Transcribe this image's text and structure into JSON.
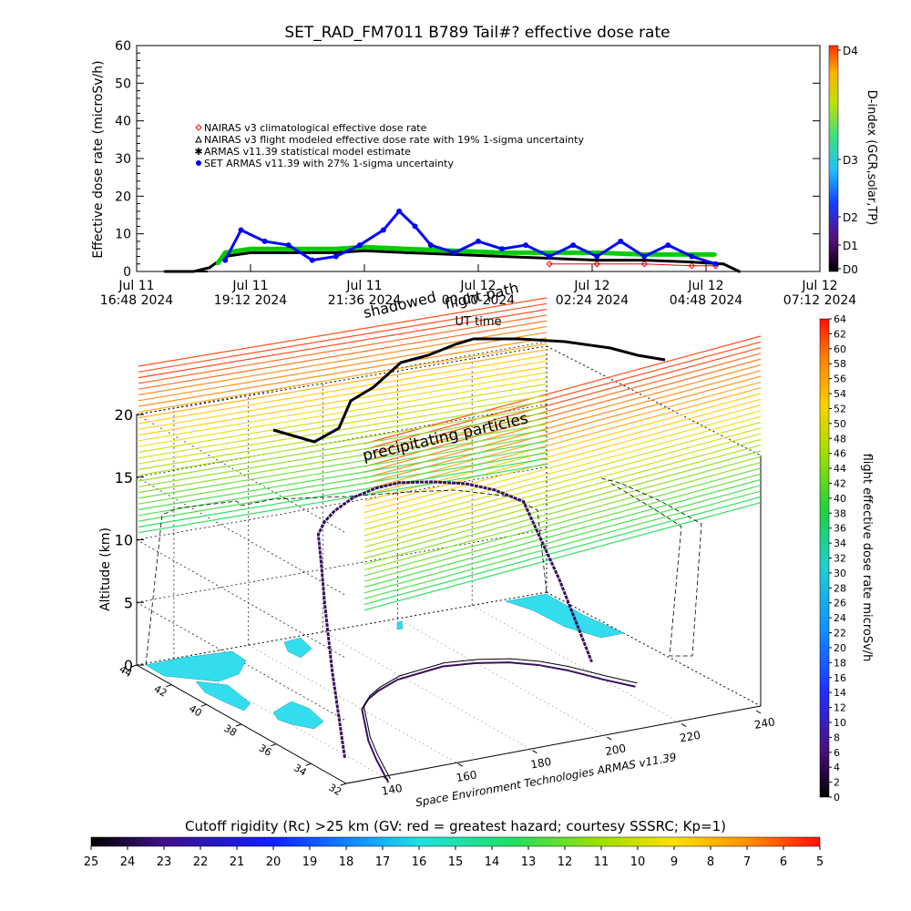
{
  "top_chart": {
    "title": "SET_RAD_FM7011  B789 Tail#? effective dose rate",
    "ylabel": "Effective dose rate (microSv/h)",
    "xlabel": "UT time",
    "y_ticks": [
      "0",
      "10",
      "20",
      "30",
      "40",
      "50",
      "60"
    ],
    "x_ticks": [
      {
        "line1": "Jul 11",
        "line2": "16:48 2024"
      },
      {
        "line1": "Jul 11",
        "line2": "19:12 2024"
      },
      {
        "line1": "Jul 11",
        "line2": "21:36 2024"
      },
      {
        "line1": "Jul 12",
        "line2": "00:00 2024"
      },
      {
        "line1": "Jul 12",
        "line2": "02:24 2024"
      },
      {
        "line1": "Jul 12",
        "line2": "04:48 2024"
      },
      {
        "line1": "Jul 12",
        "line2": "07:12 2024"
      }
    ],
    "legend": [
      {
        "text": "NAIRAS v3 climatological effective dose rate",
        "color": "#ff0000",
        "marker": "diamond"
      },
      {
        "text": "NAIRAS v3 flight modeled effective dose rate with 19% 1-sigma uncertainty",
        "color": "#000000",
        "marker": "triangle"
      },
      {
        "text": "ARMAS v11.39 statistical model estimate",
        "color": "#00cc00",
        "marker": "star"
      },
      {
        "text": "SET ARMAS v11.39 with 27% 1-sigma uncertainty",
        "color": "#0000ff",
        "marker": "dot"
      }
    ],
    "dindex": {
      "title": "D-index (GCR,solar,TP)",
      "labels": [
        "D4",
        "D3",
        "D2",
        "D1",
        "D0"
      ]
    }
  },
  "chart_data": [
    {
      "type": "scatter",
      "x_unit": "UT",
      "xlim": [
        "2024-07-11 16:48",
        "2024-07-12 07:12"
      ],
      "ylim": [
        0,
        60
      ],
      "series": [
        {
          "name": "NAIRAS v3 climatological effective dose rate",
          "x": [
            "2024-07-12 01:30",
            "2024-07-12 02:30",
            "2024-07-12 03:30",
            "2024-07-12 04:30",
            "2024-07-12 05:00"
          ],
          "y": [
            2,
            2,
            2,
            1.5,
            1.5
          ]
        },
        {
          "name": "NAIRAS v3 flight modeled effective dose rate with 19% 1-sigma uncertainty",
          "x": [
            "2024-07-11 17:24",
            "2024-07-11 18:00",
            "2024-07-11 18:20",
            "2024-07-11 18:40",
            "2024-07-11 19:12",
            "2024-07-11 20:00",
            "2024-07-11 21:00",
            "2024-07-11 21:36",
            "2024-07-11 22:30",
            "2024-07-11 23:30",
            "2024-07-12 00:30",
            "2024-07-12 01:30",
            "2024-07-12 02:30",
            "2024-07-12 03:30",
            "2024-07-12 04:30",
            "2024-07-12 05:10",
            "2024-07-12 05:30"
          ],
          "y": [
            0,
            0,
            1,
            4,
            5,
            5,
            5,
            5.5,
            5,
            4.5,
            4,
            3.5,
            3,
            3,
            2.5,
            2,
            0
          ]
        },
        {
          "name": "ARMAS v11.39 statistical model estimate",
          "x": [
            "2024-07-11 18:30",
            "2024-07-11 18:40",
            "2024-07-11 19:12",
            "2024-07-11 20:00",
            "2024-07-11 21:00",
            "2024-07-11 21:36",
            "2024-07-11 22:30",
            "2024-07-11 23:30",
            "2024-07-12 00:30",
            "2024-07-12 01:30",
            "2024-07-12 02:30",
            "2024-07-12 03:30",
            "2024-07-12 04:30",
            "2024-07-12 05:00"
          ],
          "y": [
            2,
            5,
            6,
            6,
            6,
            6.5,
            6,
            5.5,
            5,
            5,
            5,
            4.5,
            4.5,
            4.5
          ]
        },
        {
          "name": "SET ARMAS v11.39 with 27% 1-sigma uncertainty",
          "x": [
            "2024-07-11 18:40",
            "2024-07-11 19:00",
            "2024-07-11 19:30",
            "2024-07-11 20:00",
            "2024-07-11 20:30",
            "2024-07-11 21:00",
            "2024-07-11 21:30",
            "2024-07-11 22:00",
            "2024-07-11 22:20",
            "2024-07-11 22:40",
            "2024-07-11 23:00",
            "2024-07-11 23:30",
            "2024-07-12 00:00",
            "2024-07-12 00:30",
            "2024-07-12 01:00",
            "2024-07-12 01:30",
            "2024-07-12 02:00",
            "2024-07-12 02:30",
            "2024-07-12 03:00",
            "2024-07-12 03:30",
            "2024-07-12 04:00",
            "2024-07-12 04:30",
            "2024-07-12 05:00"
          ],
          "y": [
            3,
            11,
            8,
            7,
            3,
            4,
            7,
            11,
            16,
            12,
            7,
            5,
            8,
            6,
            7,
            4,
            7,
            4,
            8,
            4,
            7,
            4,
            2
          ]
        }
      ]
    },
    {
      "type": "scatter",
      "x_unit": "longitude",
      "y_unit": "latitude",
      "z_unit": "km",
      "xlim": [
        130,
        240
      ],
      "ylim": [
        32,
        44
      ],
      "zlim": [
        0,
        20
      ],
      "series": [
        {
          "name": "flight path",
          "lon": [
            139,
            145,
            150,
            156,
            160,
            165,
            170,
            178,
            185,
            192,
            200,
            207,
            212,
            216,
            220,
            224
          ],
          "lat": [
            36,
            38,
            39.5,
            41,
            42,
            42.7,
            43.2,
            43.8,
            44,
            44.2,
            44,
            43.6,
            43,
            42.2,
            41,
            40
          ],
          "alt": [
            0,
            5,
            9,
            11,
            12,
            12.2,
            12.4,
            12.6,
            12.8,
            12.7,
            12.5,
            12.3,
            12,
            11.5,
            6,
            0
          ]
        }
      ]
    }
  ],
  "bottom_chart": {
    "altitude_label": "Altitude (km)",
    "z_ticks": [
      "0",
      "5",
      "10",
      "15",
      "20"
    ],
    "lon_ticks": [
      "140",
      "160",
      "180",
      "200",
      "220",
      "240"
    ],
    "lat_ticks": [
      "44",
      "42",
      "40",
      "38",
      "36",
      "34",
      "32"
    ],
    "annotations": {
      "shadowed": "shadowed",
      "flight_path": "flight path",
      "precipitating": "precipitating particles"
    },
    "credit": "Space Environment Technologies ARMAS v11.39",
    "right_bar_title": "flight effective dose rate microSv/h",
    "right_bar_ticks": [
      "0",
      "2",
      "4",
      "6",
      "8",
      "10",
      "12",
      "14",
      "16",
      "18",
      "20",
      "22",
      "24",
      "26",
      "28",
      "30",
      "32",
      "34",
      "36",
      "38",
      "40",
      "42",
      "44",
      "46",
      "48",
      "50",
      "52",
      "54",
      "56",
      "58",
      "60",
      "62",
      "64"
    ]
  },
  "cutoff_bar": {
    "title": "Cutoff rigidity (Rc) >25 km (GV: red = greatest hazard; courtesy SSSRC; Kp=1)",
    "ticks": [
      "25",
      "24",
      "23",
      "22",
      "21",
      "20",
      "19",
      "18",
      "17",
      "16",
      "15",
      "14",
      "13",
      "12",
      "11",
      "10",
      "9",
      "8",
      "7",
      "6",
      "5"
    ]
  },
  "colors": {
    "red": "#ff0000",
    "green": "#00cc00",
    "blue": "#0000ff",
    "black": "#000000",
    "cyan": "#33ddee",
    "purple": "#3a1060"
  }
}
